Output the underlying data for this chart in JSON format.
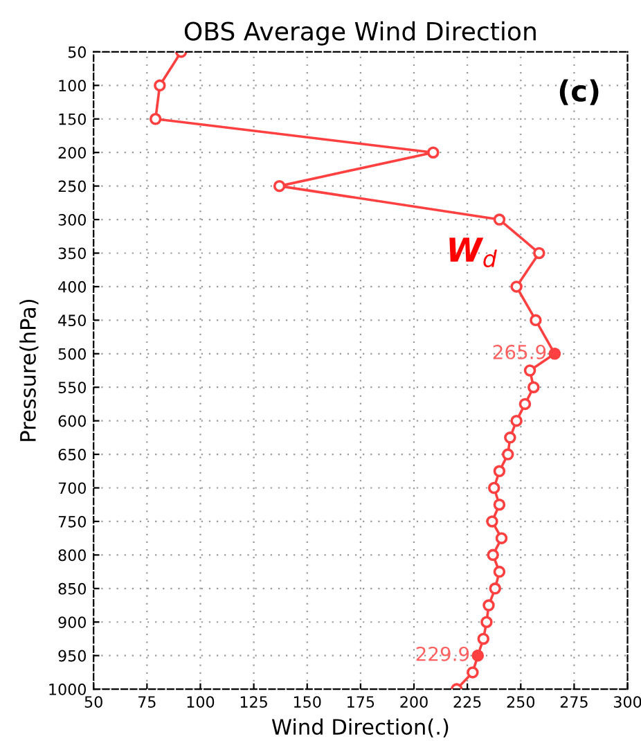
{
  "chart_data": {
    "type": "line",
    "title": "OBS Average Wind Direction",
    "xlabel": "Wind Direction(.)",
    "ylabel": "Pressure(hPa)",
    "x": [
      91,
      81,
      79,
      209,
      137,
      240,
      258.6,
      248,
      257,
      265.9,
      254.3,
      256,
      252,
      248,
      245,
      244,
      240,
      237.5,
      240,
      236.6,
      241,
      237,
      240,
      238,
      235,
      234,
      232.5,
      229.9,
      227.5,
      220
    ],
    "series": [
      {
        "color": "#ff4040",
        "values": [
          50,
          100,
          150,
          200,
          250,
          300,
          350,
          400,
          450,
          500,
          525,
          550,
          575,
          600,
          625,
          650,
          675,
          700,
          725,
          750,
          775,
          800,
          825,
          850,
          875,
          900,
          925,
          950,
          975,
          1000
        ]
      }
    ],
    "xlim": [
      50,
      300
    ],
    "xticks": [
      50,
      75,
      100,
      125,
      150,
      175,
      200,
      225,
      250,
      275,
      300
    ],
    "ylim": [
      1000,
      50
    ],
    "yticks": [
      50,
      100,
      150,
      200,
      250,
      300,
      350,
      400,
      450,
      500,
      550,
      600,
      650,
      700,
      750,
      800,
      850,
      900,
      950,
      1000
    ],
    "grid": true,
    "marker": "circle",
    "line_style": "solid",
    "annotations": [
      {
        "text": "265.9",
        "x": 265.9,
        "y": 500
      },
      {
        "text": "229.9",
        "x": 229.9,
        "y": 950
      },
      "W$_{d}$",
      "(c)"
    ]
  }
}
